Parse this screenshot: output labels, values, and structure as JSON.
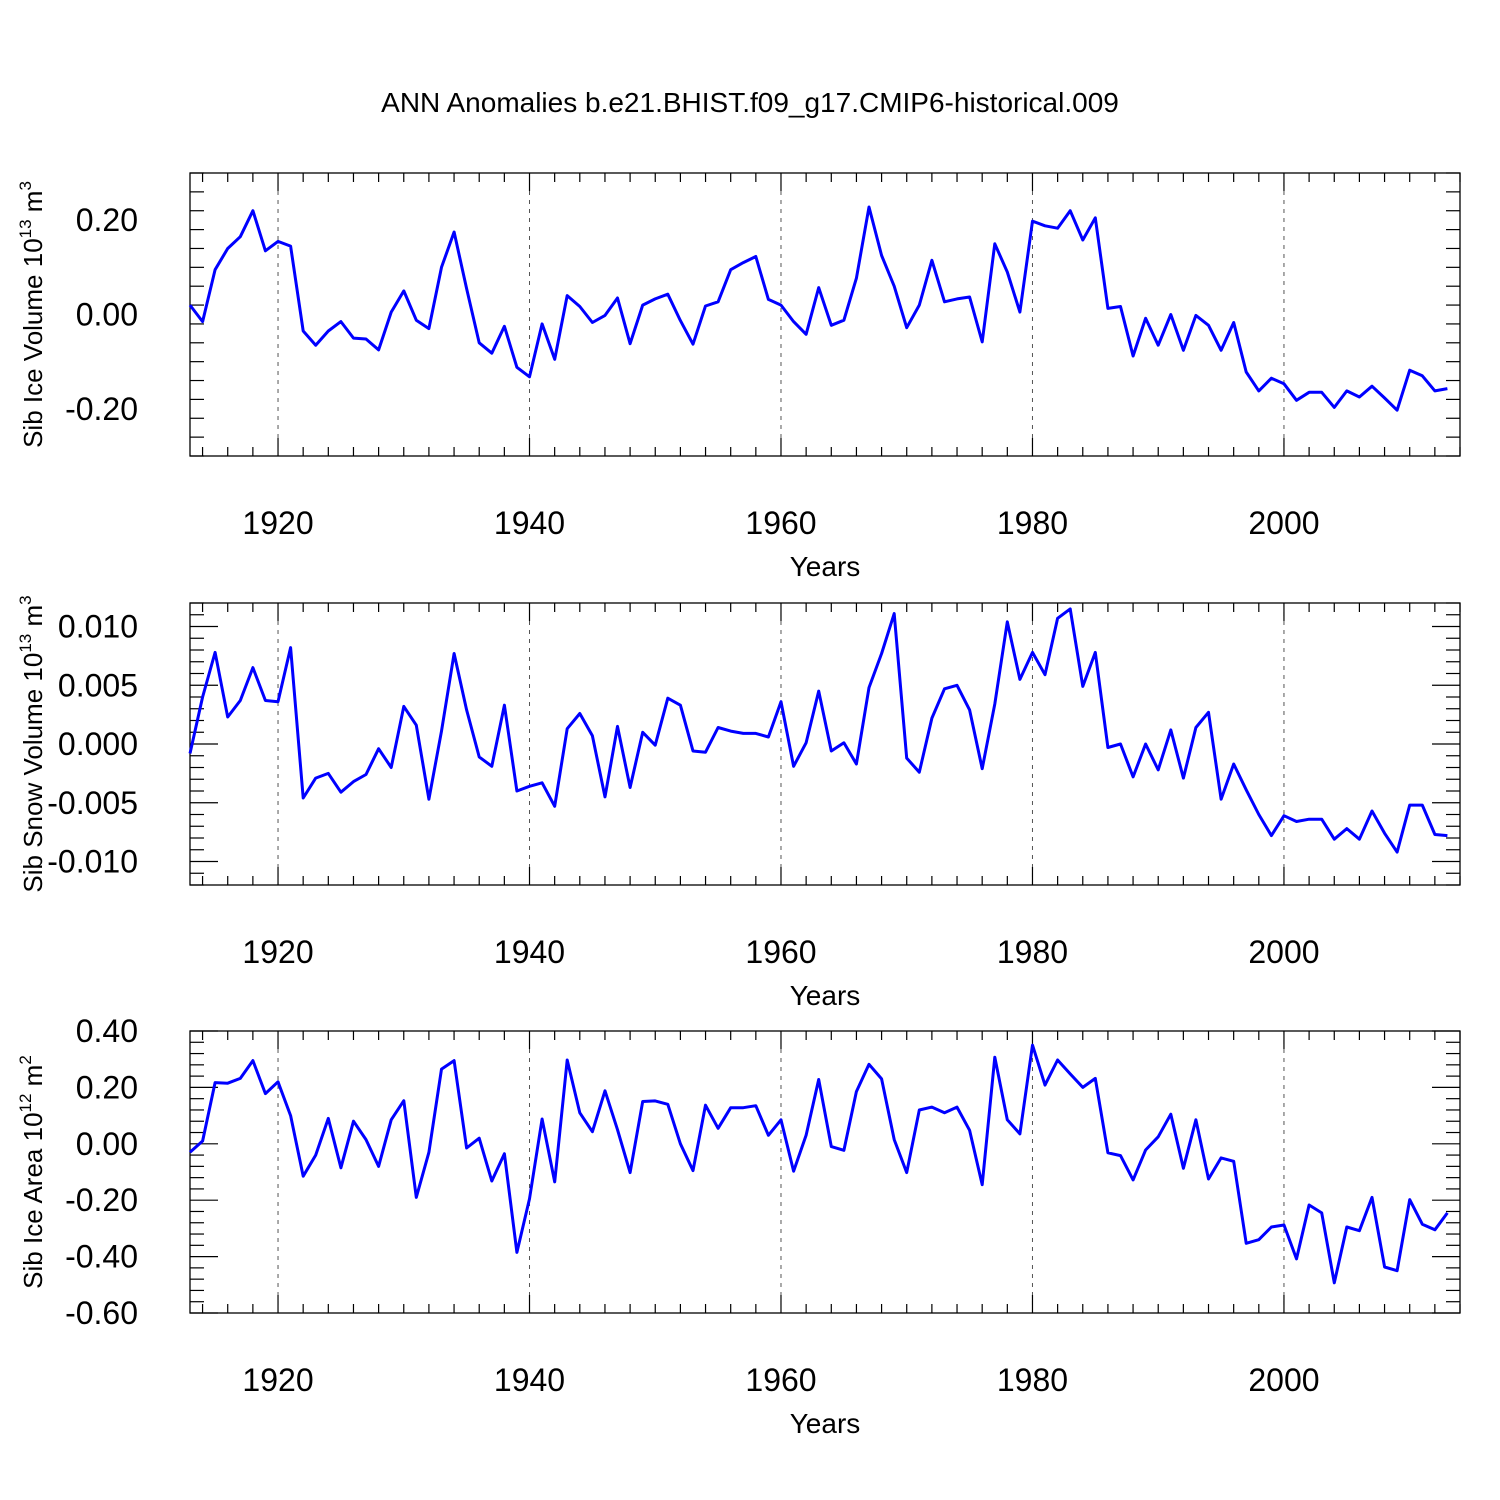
{
  "title": "ANN Anomalies b.e21.BHIST.f09_g17.CMIP6-historical.009",
  "colors": {
    "line": "#0000ff",
    "axis": "#000000",
    "grid": "#555555"
  },
  "chart_data": [
    {
      "type": "line",
      "ylabel_main": "Sib Ice Volume 10",
      "ylabel_exp": "13",
      "ylabel_unit": " m",
      "ylabel_unit_exp": "3",
      "xlabel": "Years",
      "xlim": [
        1913,
        2014
      ],
      "ylim": [
        -0.3,
        0.3
      ],
      "yticks": [
        -0.2,
        0.0,
        0.2
      ],
      "ytick_labels": [
        "-0.20",
        "0.00",
        "0.20"
      ],
      "xticks": [
        1920,
        1940,
        1960,
        1980,
        2000
      ],
      "xtick_labels": [
        "1920",
        "1940",
        "1960",
        "1980",
        "2000"
      ],
      "grid": "vertical dashed at major x ticks",
      "series": [
        {
          "name": "Sib Ice Volume",
          "color": "#0000ff",
          "x_start": 1913,
          "values": [
            0.02,
            -0.015,
            0.095,
            0.14,
            0.165,
            0.22,
            0.135,
            0.155,
            0.145,
            -0.035,
            -0.065,
            -0.035,
            -0.015,
            -0.05,
            -0.052,
            -0.075,
            0.005,
            0.05,
            -0.012,
            -0.03,
            0.1,
            0.175,
            0.055,
            -0.06,
            -0.082,
            -0.025,
            -0.112,
            -0.132,
            -0.02,
            -0.095,
            0.04,
            0.017,
            -0.017,
            -0.002,
            0.035,
            -0.062,
            0.02,
            0.033,
            0.043,
            -0.013,
            -0.063,
            0.018,
            0.027,
            0.095,
            0.11,
            0.123,
            0.032,
            0.02,
            -0.015,
            -0.042,
            0.057,
            -0.023,
            -0.012,
            0.077,
            0.228,
            0.125,
            0.06,
            -0.028,
            0.02,
            0.115,
            0.027,
            0.033,
            0.037,
            -0.058,
            0.15,
            0.09,
            0.005,
            0.198,
            0.188,
            0.183,
            0.22,
            0.158,
            0.205,
            0.013,
            0.017,
            -0.088,
            -0.008,
            -0.065,
            0.0,
            -0.076,
            -0.002,
            -0.023,
            -0.076,
            -0.017,
            -0.122,
            -0.162,
            -0.135,
            -0.147,
            -0.182,
            -0.165,
            -0.165,
            -0.197,
            -0.162,
            -0.175,
            -0.152,
            -0.177,
            -0.203,
            -0.118,
            -0.13,
            -0.162,
            -0.157
          ]
        }
      ]
    },
    {
      "type": "line",
      "ylabel_main": "Sib Snow Volume 10",
      "ylabel_exp": "13",
      "ylabel_unit": " m",
      "ylabel_unit_exp": "3",
      "xlabel": "Years",
      "xlim": [
        1913,
        2014
      ],
      "ylim": [
        -0.012,
        0.012
      ],
      "yticks": [
        -0.01,
        -0.005,
        0.0,
        0.005,
        0.01
      ],
      "ytick_labels": [
        "-0.010",
        "-0.005",
        "0.000",
        "0.005",
        "0.010"
      ],
      "xticks": [
        1920,
        1940,
        1960,
        1980,
        2000
      ],
      "xtick_labels": [
        "1920",
        "1940",
        "1960",
        "1980",
        "2000"
      ],
      "grid": "vertical dashed at major x ticks",
      "series": [
        {
          "name": "Sib Snow Volume",
          "color": "#0000ff",
          "x_start": 1913,
          "values": [
            -0.0008,
            0.004,
            0.0078,
            0.0023,
            0.0037,
            0.0065,
            0.0037,
            0.0036,
            0.0082,
            -0.0046,
            -0.0029,
            -0.0025,
            -0.0041,
            -0.0032,
            -0.0026,
            -0.0004,
            -0.002,
            0.0032,
            0.0016,
            -0.0047,
            0.0011,
            0.0077,
            0.0029,
            -0.0011,
            -0.0019,
            0.0033,
            -0.004,
            -0.0036,
            -0.0033,
            -0.0053,
            0.0013,
            0.0026,
            0.0007,
            -0.0045,
            0.0015,
            -0.0037,
            0.001,
            -0.0001,
            0.0039,
            0.0033,
            -0.0006,
            -0.0007,
            0.0014,
            0.0011,
            0.0009,
            0.0009,
            0.0006,
            0.0036,
            -0.0019,
            0.0001,
            0.0045,
            -0.0006,
            0.0001,
            -0.0017,
            0.0048,
            0.0077,
            0.0111,
            -0.0012,
            -0.0024,
            0.0022,
            0.0047,
            0.005,
            0.0029,
            -0.0021,
            0.0034,
            0.0104,
            0.0055,
            0.0078,
            0.0059,
            0.0107,
            0.0115,
            0.0049,
            0.0078,
            -0.0003,
            0.0,
            -0.0028,
            0.0,
            -0.0022,
            0.0012,
            -0.0029,
            0.0014,
            0.0027,
            -0.0047,
            -0.0017,
            -0.0039,
            -0.006,
            -0.0078,
            -0.0061,
            -0.0066,
            -0.0064,
            -0.0064,
            -0.0081,
            -0.0072,
            -0.0081,
            -0.0057,
            -0.0076,
            -0.0092,
            -0.0052,
            -0.0052,
            -0.0077,
            -0.0078
          ]
        }
      ]
    },
    {
      "type": "line",
      "ylabel_main": "Sib Ice Area 10",
      "ylabel_exp": "12",
      "ylabel_unit": " m",
      "ylabel_unit_exp": "2",
      "xlabel": "Years",
      "xlim": [
        1913,
        2014
      ],
      "ylim": [
        -0.6,
        0.4
      ],
      "yticks": [
        -0.6,
        -0.4,
        -0.2,
        0.0,
        0.2,
        0.4
      ],
      "ytick_labels": [
        "-0.60",
        "-0.40",
        "-0.20",
        "0.00",
        "0.20",
        "0.40"
      ],
      "xticks": [
        1920,
        1940,
        1960,
        1980,
        2000
      ],
      "xtick_labels": [
        "1920",
        "1940",
        "1960",
        "1980",
        "2000"
      ],
      "grid": "vertical dashed at major x ticks",
      "series": [
        {
          "name": "Sib Ice Area",
          "color": "#0000ff",
          "x_start": 1913,
          "values": [
            -0.03,
            0.01,
            0.217,
            0.215,
            0.232,
            0.295,
            0.178,
            0.22,
            0.1,
            -0.115,
            -0.04,
            0.09,
            -0.085,
            0.08,
            0.015,
            -0.08,
            0.085,
            0.153,
            -0.19,
            -0.03,
            0.265,
            0.295,
            -0.015,
            0.02,
            -0.132,
            -0.035,
            -0.385,
            -0.195,
            0.088,
            -0.135,
            0.297,
            0.11,
            0.043,
            0.188,
            0.05,
            -0.102,
            0.15,
            0.152,
            0.14,
            0.0,
            -0.095,
            0.137,
            0.055,
            0.128,
            0.128,
            0.135,
            0.03,
            0.085,
            -0.097,
            0.03,
            0.228,
            -0.01,
            -0.023,
            0.185,
            0.282,
            0.23,
            0.015,
            -0.102,
            0.12,
            0.13,
            0.11,
            0.13,
            0.048,
            -0.145,
            0.307,
            0.085,
            0.035,
            0.35,
            0.208,
            0.297,
            0.248,
            0.2,
            0.232,
            -0.032,
            -0.042,
            -0.128,
            -0.022,
            0.025,
            0.105,
            -0.087,
            0.085,
            -0.125,
            -0.05,
            -0.062,
            -0.353,
            -0.34,
            -0.295,
            -0.288,
            -0.408,
            -0.217,
            -0.245,
            -0.493,
            -0.295,
            -0.308,
            -0.19,
            -0.437,
            -0.45,
            -0.198,
            -0.285,
            -0.305,
            -0.245
          ]
        }
      ]
    }
  ]
}
